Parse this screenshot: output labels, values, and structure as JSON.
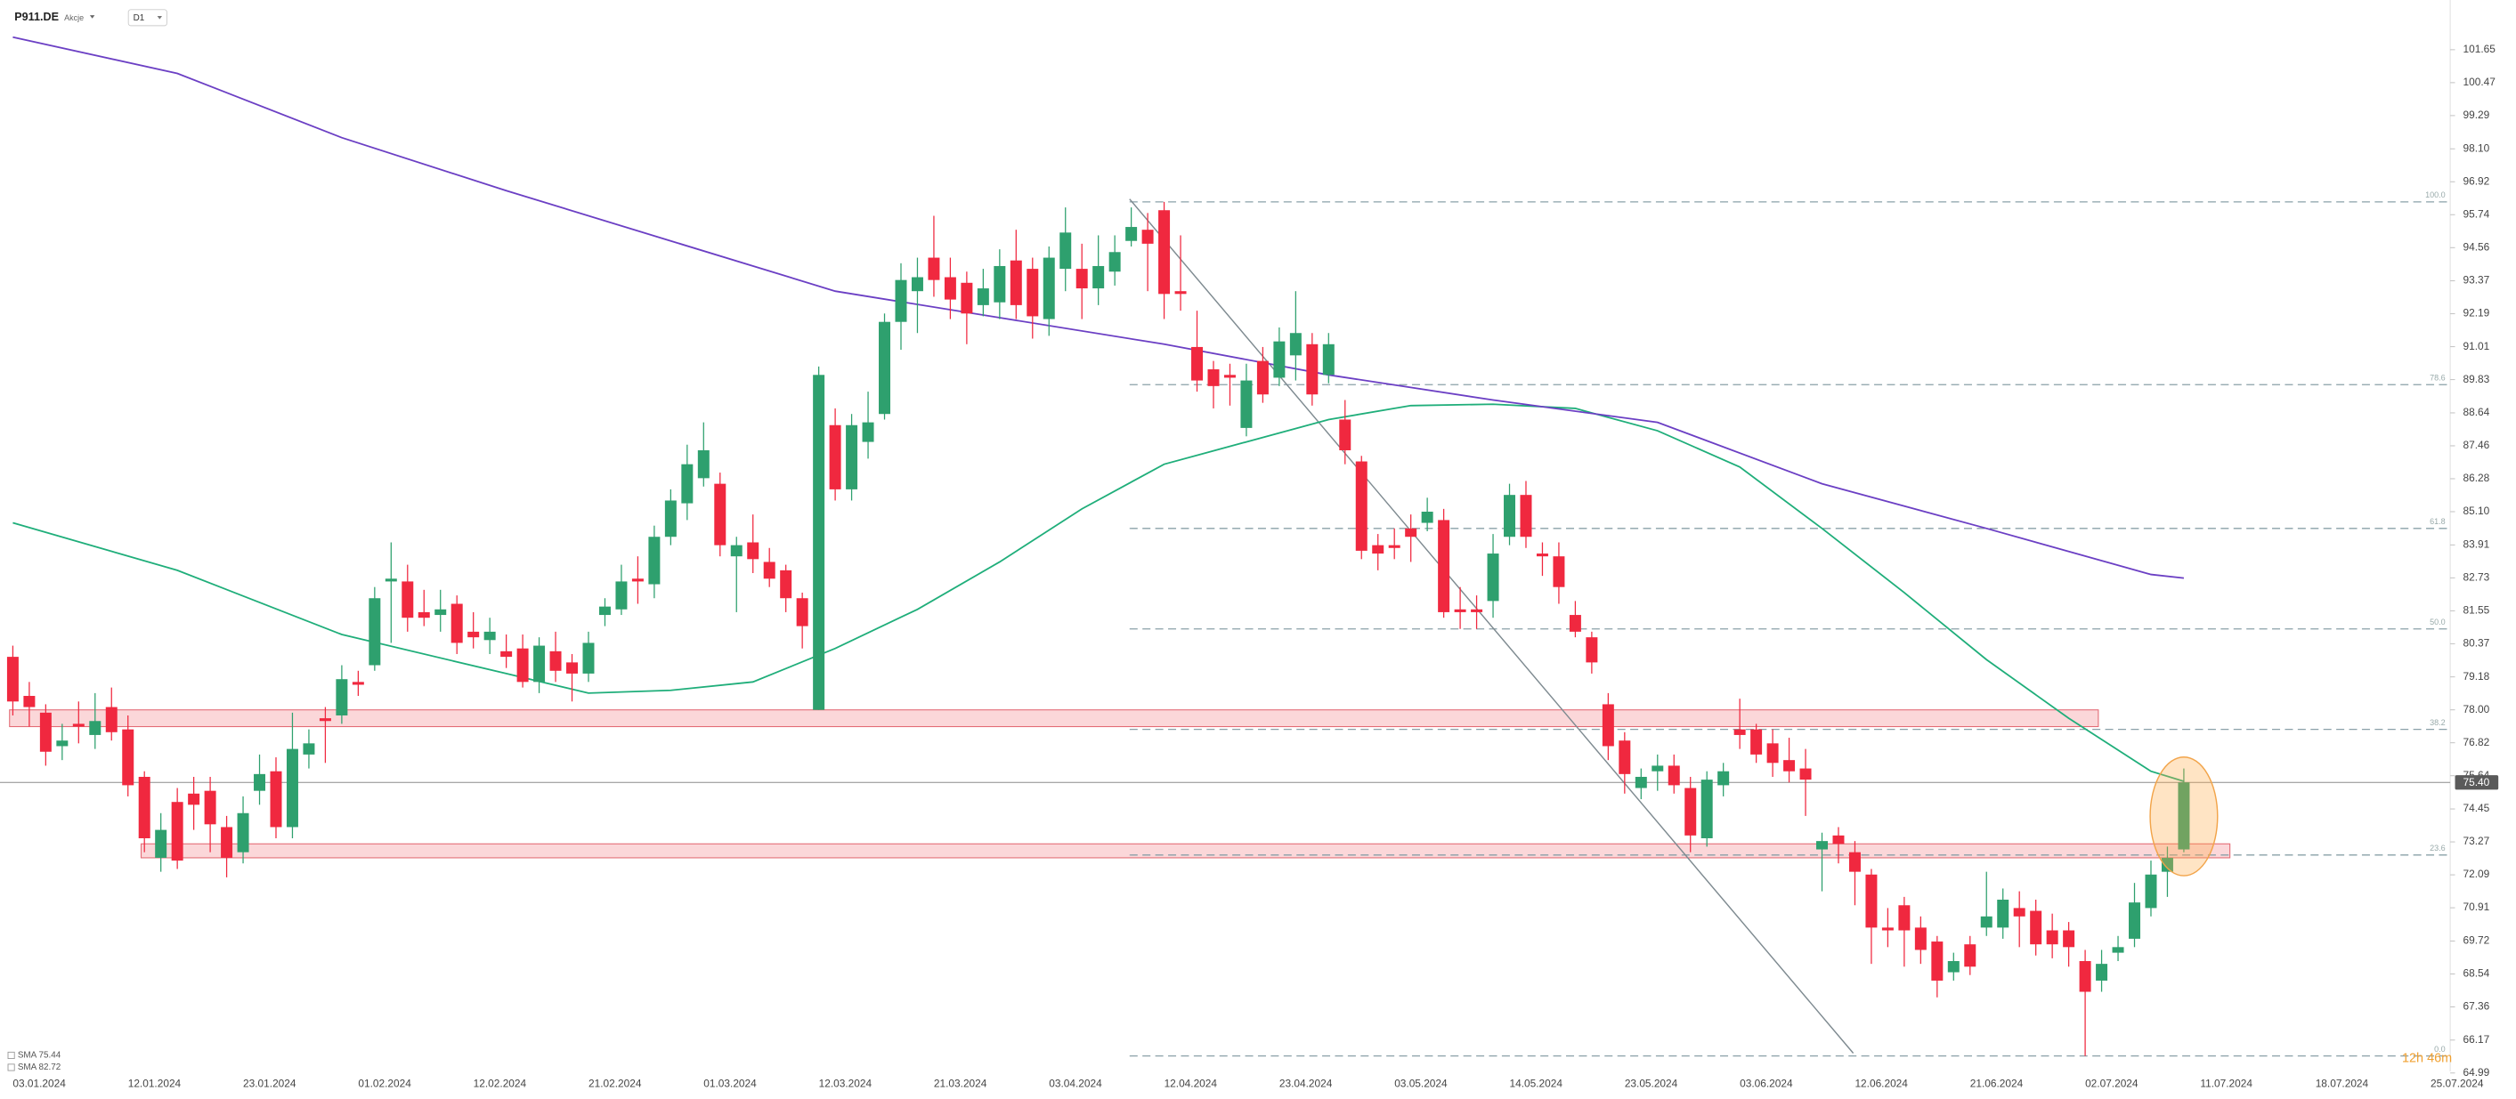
{
  "header": {
    "symbol": "P911.DE",
    "asset_class": "Akcje",
    "interval": "D1",
    "countdown": "12h 46m"
  },
  "chart_data": {
    "type": "candlestick",
    "categories": [
      "03.01.2024",
      null,
      null,
      null,
      null,
      null,
      null,
      "12.01.2024",
      null,
      null,
      null,
      null,
      null,
      null,
      "23.01.2024",
      null,
      null,
      null,
      null,
      null,
      null,
      "01.02.2024",
      null,
      null,
      null,
      null,
      null,
      null,
      "12.02.2024",
      null,
      null,
      null,
      null,
      null,
      null,
      "21.02.2024",
      null,
      null,
      null,
      null,
      null,
      null,
      "01.03.2024",
      null,
      null,
      null,
      null,
      null,
      null,
      "12.03.2024",
      null,
      null,
      null,
      null,
      null,
      null,
      "21.03.2024",
      null,
      null,
      null,
      null,
      null,
      null,
      "03.04.2024",
      null,
      null,
      null,
      null,
      null,
      null,
      "12.04.2024",
      null,
      null,
      null,
      null,
      null,
      null,
      "23.04.2024",
      null,
      null,
      null,
      null,
      null,
      null,
      "03.05.2024",
      null,
      null,
      null,
      null,
      null,
      null,
      "14.05.2024",
      null,
      null,
      null,
      null,
      null,
      null,
      "23.05.2024",
      null,
      null,
      null,
      null,
      null,
      null,
      "03.06.2024",
      null,
      null,
      null,
      null,
      null,
      null,
      "12.06.2024",
      null,
      null,
      null,
      null,
      null,
      null,
      "21.06.2024",
      null,
      null,
      null,
      null,
      null,
      null,
      "02.07.2024",
      null,
      null,
      null,
      null,
      null,
      null,
      "11.07.2024",
      null,
      null,
      null,
      null,
      null,
      null,
      "18.07.2024",
      null,
      null,
      null,
      null,
      null,
      null,
      "25.07.2024"
    ],
    "open": [
      79.9,
      78.5,
      77.9,
      76.7,
      77.5,
      77.1,
      78.1,
      77.3,
      75.6,
      72.7,
      74.7,
      75.0,
      75.1,
      73.8,
      72.9,
      75.1,
      75.8,
      73.8,
      76.4,
      77.7,
      77.8,
      79.0,
      79.6,
      82.6,
      82.6,
      81.5,
      81.4,
      81.8,
      80.8,
      80.5,
      80.1,
      80.2,
      79.0,
      80.1,
      79.7,
      79.3,
      81.4,
      81.6,
      82.7,
      82.5,
      84.2,
      85.4,
      86.3,
      86.1,
      83.5,
      84.0,
      83.3,
      83.0,
      82.0,
      78.0,
      88.2,
      85.9,
      87.6,
      88.6,
      91.9,
      93.0,
      94.2,
      93.5,
      93.3,
      92.5,
      92.6,
      94.1,
      93.8,
      92.0,
      93.8,
      93.8,
      93.1,
      93.7,
      94.8,
      95.2,
      95.9,
      93.0,
      91.0,
      90.2,
      90.0,
      88.1,
      90.5,
      89.9,
      90.7,
      91.1,
      90.0,
      88.4,
      86.9,
      83.9,
      83.9,
      84.5,
      84.7,
      84.8,
      81.6,
      81.6,
      81.9,
      84.2,
      85.7,
      83.6,
      83.5,
      81.4,
      80.6,
      78.2,
      76.9,
      75.2,
      75.8,
      76.0,
      75.2,
      73.4,
      75.3,
      77.3,
      77.3,
      76.8,
      76.2,
      75.9,
      73.0,
      73.5,
      72.9,
      72.1,
      70.2,
      71.0,
      70.2,
      69.7,
      68.6,
      69.6,
      70.2,
      70.2,
      70.9,
      70.8,
      70.1,
      70.1,
      69.0,
      68.3,
      69.3,
      69.8,
      70.9,
      72.2,
      73.0,
      null,
      null,
      null,
      null,
      null,
      null,
      null,
      null,
      null,
      null,
      null,
      null,
      null,
      null,
      null
    ],
    "high": [
      80.3,
      79.0,
      78.2,
      77.5,
      78.3,
      78.6,
      78.8,
      77.8,
      75.8,
      74.3,
      75.2,
      75.6,
      75.6,
      74.2,
      74.9,
      76.4,
      76.3,
      77.9,
      77.3,
      78.1,
      79.6,
      79.4,
      82.4,
      84.0,
      83.2,
      82.3,
      82.3,
      82.1,
      81.5,
      81.3,
      80.7,
      80.7,
      80.6,
      80.8,
      80.0,
      80.8,
      82.0,
      83.2,
      83.5,
      84.6,
      85.9,
      87.5,
      88.3,
      86.5,
      84.2,
      85.0,
      83.8,
      83.2,
      82.2,
      90.3,
      88.8,
      88.6,
      89.4,
      92.2,
      94.0,
      94.2,
      95.7,
      94.2,
      93.7,
      93.8,
      94.5,
      95.2,
      94.2,
      94.6,
      96.0,
      94.7,
      95.0,
      95.0,
      96.0,
      95.8,
      96.2,
      95.0,
      92.3,
      90.5,
      90.4,
      90.4,
      91.0,
      91.7,
      93.0,
      91.5,
      91.5,
      89.1,
      87.1,
      84.3,
      84.5,
      85.0,
      85.6,
      85.2,
      82.4,
      82.1,
      84.3,
      86.1,
      86.2,
      84.0,
      84.0,
      81.9,
      80.8,
      78.6,
      77.2,
      75.9,
      76.4,
      76.4,
      75.6,
      75.8,
      76.1,
      78.4,
      77.5,
      77.3,
      77.0,
      76.6,
      73.6,
      73.8,
      73.3,
      72.3,
      70.9,
      71.3,
      70.6,
      69.9,
      69.3,
      69.9,
      72.2,
      71.6,
      71.5,
      71.2,
      70.7,
      70.4,
      69.4,
      69.4,
      69.9,
      71.8,
      72.6,
      73.1,
      75.9,
      null,
      null,
      null,
      null,
      null,
      null,
      null,
      null,
      null,
      null,
      null,
      null,
      null,
      null,
      null
    ],
    "low": [
      77.8,
      77.4,
      76.0,
      76.2,
      76.8,
      76.6,
      76.9,
      74.9,
      72.9,
      72.2,
      72.3,
      73.7,
      72.9,
      72.0,
      72.5,
      74.6,
      73.4,
      73.4,
      75.9,
      76.1,
      77.5,
      78.5,
      79.4,
      80.4,
      80.8,
      81.0,
      80.8,
      80.0,
      80.2,
      80.0,
      79.5,
      78.8,
      78.6,
      79.0,
      78.3,
      79.0,
      81.0,
      81.4,
      81.8,
      82.0,
      83.9,
      84.8,
      86.0,
      83.5,
      81.5,
      82.9,
      82.4,
      81.5,
      80.2,
      78.0,
      85.5,
      85.5,
      87.0,
      88.4,
      90.9,
      91.5,
      92.8,
      92.0,
      91.1,
      92.1,
      92.0,
      92.0,
      91.3,
      91.4,
      93.0,
      92.0,
      92.5,
      93.2,
      94.6,
      93.0,
      92.0,
      92.3,
      89.4,
      88.8,
      88.9,
      87.8,
      89.0,
      89.6,
      89.8,
      88.9,
      89.7,
      86.8,
      83.4,
      83.0,
      83.4,
      83.3,
      84.4,
      81.3,
      80.9,
      80.9,
      81.3,
      83.9,
      83.8,
      82.8,
      81.8,
      80.6,
      79.3,
      76.2,
      75.0,
      74.8,
      75.1,
      75.0,
      72.9,
      73.1,
      74.9,
      76.6,
      76.1,
      75.6,
      75.4,
      74.2,
      71.5,
      72.5,
      71.0,
      68.9,
      69.5,
      68.8,
      68.9,
      67.7,
      68.3,
      68.5,
      69.9,
      69.8,
      69.5,
      69.2,
      69.1,
      68.8,
      65.6,
      67.9,
      69.0,
      69.5,
      70.6,
      71.3,
      72.9,
      null,
      null,
      null,
      null,
      null,
      null,
      null,
      null,
      null,
      null,
      null,
      null,
      null,
      null,
      null
    ],
    "close": [
      78.3,
      78.1,
      76.5,
      76.9,
      77.4,
      77.6,
      77.2,
      75.3,
      73.4,
      73.7,
      72.6,
      74.6,
      73.9,
      72.7,
      74.3,
      75.7,
      73.8,
      76.6,
      76.8,
      77.6,
      79.1,
      78.9,
      82.0,
      82.7,
      81.3,
      81.3,
      81.6,
      80.4,
      80.6,
      80.8,
      79.9,
      79.0,
      80.3,
      79.4,
      79.3,
      80.4,
      81.7,
      82.6,
      82.6,
      84.2,
      85.5,
      86.8,
      87.3,
      83.9,
      83.9,
      83.4,
      82.7,
      82.0,
      81.0,
      90.0,
      85.9,
      88.2,
      88.3,
      91.9,
      93.4,
      93.5,
      93.4,
      92.7,
      92.2,
      93.1,
      93.9,
      92.5,
      92.1,
      94.2,
      95.1,
      93.1,
      93.9,
      94.4,
      95.3,
      94.7,
      92.9,
      92.9,
      89.8,
      89.6,
      89.9,
      89.8,
      89.3,
      91.2,
      91.5,
      89.3,
      91.1,
      87.3,
      83.7,
      83.6,
      83.8,
      84.2,
      85.1,
      81.5,
      81.5,
      81.5,
      83.6,
      85.7,
      84.2,
      83.5,
      82.4,
      80.8,
      79.7,
      76.7,
      75.7,
      75.6,
      76.0,
      75.3,
      73.5,
      75.5,
      75.8,
      77.1,
      76.4,
      76.1,
      75.8,
      75.5,
      73.3,
      73.2,
      72.2,
      70.2,
      70.1,
      70.1,
      69.4,
      68.3,
      69.0,
      68.8,
      70.6,
      71.2,
      70.6,
      69.6,
      69.6,
      69.5,
      67.9,
      68.9,
      69.5,
      71.1,
      72.1,
      72.7,
      75.4,
      null,
      null,
      null,
      null,
      null,
      null,
      null,
      null,
      null,
      null,
      null,
      null,
      null,
      null,
      null
    ],
    "up_color": "#2ea06e",
    "down_color": "#f0283f",
    "sma": [
      {
        "name": "SMA 75.44",
        "color": "#1fae7a",
        "x": [
          0,
          10,
          20,
          30,
          35,
          40,
          45,
          50,
          55,
          60,
          65,
          70,
          75,
          80,
          85,
          90,
          95,
          100,
          105,
          110,
          115,
          120,
          125,
          130,
          132
        ],
        "values": [
          84.7,
          83.0,
          80.7,
          79.3,
          78.6,
          78.7,
          79.0,
          80.2,
          81.6,
          83.3,
          85.2,
          86.8,
          87.6,
          88.4,
          88.9,
          88.95,
          88.8,
          88.0,
          86.7,
          84.5,
          82.2,
          79.8,
          77.7,
          75.8,
          75.44
        ]
      },
      {
        "name": "SMA 82.72",
        "color": "#6b3fc4",
        "x": [
          0,
          10,
          20,
          30,
          40,
          50,
          60,
          70,
          80,
          90,
          100,
          110,
          120,
          130,
          132
        ],
        "values": [
          102.1,
          100.8,
          98.5,
          96.6,
          94.8,
          93.0,
          92.05,
          91.1,
          90.0,
          89.1,
          88.3,
          86.1,
          84.5,
          82.85,
          82.72
        ]
      }
    ],
    "zones": [
      {
        "x": [
          -0.2,
          126.8
        ],
        "values": [
          78.0,
          77.4
        ]
      },
      {
        "x": [
          7.8,
          134.8
        ],
        "values": [
          73.2,
          72.7
        ]
      }
    ],
    "trendline": {
      "x": [
        67.9,
        111.9
      ],
      "values": [
        96.3,
        65.7
      ]
    },
    "fib_x": [
      67.9,
      148.2
    ],
    "fib_levels": [
      {
        "value": 96.2,
        "label": "100.0"
      },
      {
        "value": 89.65,
        "label": "78.6"
      },
      {
        "value": 84.5,
        "label": "61.8"
      },
      {
        "value": 80.9,
        "label": "50.0"
      },
      {
        "value": 77.3,
        "label": "38.2"
      },
      {
        "value": 72.8,
        "label": "23.6"
      },
      {
        "value": 65.6,
        "label": "0.0"
      }
    ],
    "last_price": {
      "value": 75.4,
      "label": "75.40"
    },
    "ylim": [
      64.06,
      103.43
    ],
    "yticks": [
      101.65,
      100.47,
      99.29,
      {
        "value": 98.1,
        "label": "98.10"
      },
      96.92,
      95.74,
      94.56,
      93.37,
      92.19,
      91.01,
      89.83,
      88.64,
      87.46,
      86.28,
      {
        "value": 85.1,
        "label": "85.10"
      },
      83.91,
      82.73,
      81.55,
      80.37,
      79.18,
      {
        "value": 78,
        "label": "78.00"
      },
      76.82,
      75.64,
      74.45,
      73.27,
      72.09,
      70.91,
      69.72,
      68.54,
      67.36,
      66.17,
      64.99
    ]
  }
}
